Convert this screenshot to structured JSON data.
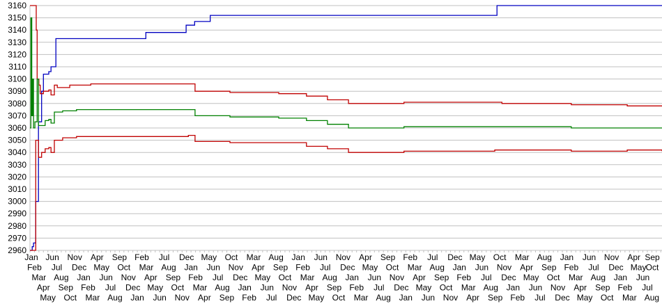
{
  "chart_data": {
    "type": "line",
    "title": "",
    "xlabel": "",
    "ylabel": "",
    "ylim": [
      2960,
      3160
    ],
    "yticks": [
      "2960",
      "2970",
      "2980",
      "2990",
      "3000",
      "3010",
      "3020",
      "3030",
      "3040",
      "3050",
      "3060",
      "3070",
      "3080",
      "3090",
      "3100",
      "3110",
      "3120",
      "3130",
      "3140",
      "3150",
      "3160"
    ],
    "grid": true,
    "legend": "none",
    "categories": [
      "Jan",
      "Feb",
      "Mar",
      "Apr",
      "May",
      "Jun",
      "Jul",
      "Aug",
      "Sep",
      "Oct",
      "Nov",
      "Dec",
      "Jan",
      "Feb",
      "Mar",
      "Apr",
      "May",
      "Jun",
      "Jul",
      "Aug",
      "Sep",
      "Oct",
      "Nov",
      "Dec",
      "Jan",
      "Feb",
      "Mar",
      "Apr",
      "May",
      "Jun",
      "Jul",
      "Aug",
      "Sep",
      "Oct",
      "Nov",
      "Dec",
      "Jan",
      "Feb",
      "Mar",
      "Apr",
      "May",
      "Jun",
      "Jul",
      "Aug",
      "Sep",
      "Oct",
      "Nov",
      "Dec",
      "Jan",
      "Feb",
      "Mar",
      "Apr",
      "May",
      "Jun",
      "Jul",
      "Aug",
      "Sep",
      "Oct",
      "Nov",
      "Dec",
      "Jan",
      "Feb",
      "Mar",
      "Apr",
      "May",
      "Jun",
      "Jul",
      "Aug",
      "Sep",
      "Oct",
      "Nov",
      "Dec",
      "Jan",
      "Feb",
      "Mar",
      "Apr",
      "May",
      "Jun",
      "Jul",
      "Aug",
      "Sep",
      "Oct",
      "Nov",
      "Dec",
      "Jan",
      "Feb",
      "Mar",
      "Apr",
      "May",
      "Jun",
      "Jul",
      "Aug",
      "Sep",
      "Oct",
      "Nov",
      "Dec",
      "Jan",
      "Feb",
      "Mar",
      "Apr",
      "May",
      "Jun",
      "Jul",
      "Aug",
      "Sep",
      "Oct",
      "Nov",
      "Dec",
      "Jan",
      "Feb",
      "Mar",
      "Apr",
      "May",
      "Jun",
      "Jul",
      "Aug",
      "Sep",
      "Oct",
      "Nov",
      "Dec",
      "Jan",
      "Feb",
      "Mar",
      "Apr",
      "May",
      "Jun",
      "Jul",
      "Aug",
      "Sep",
      "Oct",
      "Nov",
      "Dec",
      "Jan",
      "Feb",
      "Mar",
      "Apr",
      "May",
      "Jun",
      "Jul",
      "Aug",
      "Sep",
      "Oct"
    ],
    "series": [
      {
        "color": "#0000c0",
        "points": [
          [
            0,
            2960
          ],
          [
            0.5,
            2963
          ],
          [
            0.8,
            2966
          ],
          [
            1.1,
            2966
          ],
          [
            1.3,
            3000
          ],
          [
            1.9,
            3065
          ],
          [
            2.6,
            3090
          ],
          [
            3.0,
            3104
          ],
          [
            4.2,
            3106
          ],
          [
            4.7,
            3110
          ],
          [
            5.8,
            3133
          ],
          [
            25.9,
            3138
          ],
          [
            34.9,
            3144
          ],
          [
            36.8,
            3147
          ],
          [
            40.3,
            3152
          ],
          [
            104.4,
            3160
          ],
          [
            141.3,
            3160
          ]
        ]
      },
      {
        "color": "#c00000",
        "points": [
          [
            0,
            3160
          ],
          [
            1.1,
            3160
          ],
          [
            1.4,
            3140
          ],
          [
            1.6,
            3100
          ],
          [
            2.0,
            3095
          ],
          [
            2.3,
            3088
          ],
          [
            3.0,
            3090
          ],
          [
            4.2,
            3091
          ],
          [
            4.7,
            3087
          ],
          [
            5.45,
            3095
          ],
          [
            6.1,
            3093
          ],
          [
            8.9,
            3095
          ],
          [
            13.6,
            3096
          ],
          [
            35.4,
            3096
          ],
          [
            36.9,
            3090
          ],
          [
            44.7,
            3089
          ],
          [
            55.6,
            3088
          ],
          [
            61.8,
            3086
          ],
          [
            66.5,
            3083
          ],
          [
            71.2,
            3080
          ],
          [
            79,
            3080
          ],
          [
            83.6,
            3081
          ],
          [
            103.9,
            3081
          ],
          [
            105.5,
            3080
          ],
          [
            117.9,
            3080
          ],
          [
            121,
            3079
          ],
          [
            131.9,
            3079
          ],
          [
            133.5,
            3078
          ],
          [
            141.3,
            3078
          ]
        ]
      },
      {
        "color": "#008000",
        "points": [
          [
            0,
            3060
          ],
          [
            0.2,
            3150
          ],
          [
            0.4,
            3070
          ],
          [
            0.6,
            3100
          ],
          [
            0.8,
            3060
          ],
          [
            1.1,
            3065
          ],
          [
            1.6,
            3100
          ],
          [
            1.9,
            3062
          ],
          [
            2.6,
            3062
          ],
          [
            3.4,
            3066
          ],
          [
            4.2,
            3067
          ],
          [
            4.7,
            3064
          ],
          [
            5.45,
            3073
          ],
          [
            7.3,
            3074
          ],
          [
            10.4,
            3075
          ],
          [
            35.4,
            3075
          ],
          [
            36.9,
            3070
          ],
          [
            44.7,
            3069
          ],
          [
            55.6,
            3068
          ],
          [
            61.8,
            3066
          ],
          [
            66.5,
            3063
          ],
          [
            71.2,
            3060
          ],
          [
            79,
            3060
          ],
          [
            83.6,
            3061
          ],
          [
            103.9,
            3061
          ],
          [
            117.9,
            3061
          ],
          [
            121,
            3060
          ],
          [
            141.3,
            3060
          ]
        ]
      },
      {
        "color": "#c00000",
        "points": [
          [
            0,
            2960
          ],
          [
            1.2,
            2960
          ],
          [
            1.3,
            3050
          ],
          [
            1.9,
            3036
          ],
          [
            2.6,
            3040
          ],
          [
            3.4,
            3043
          ],
          [
            4.2,
            3044
          ],
          [
            4.7,
            3040
          ],
          [
            5.45,
            3050
          ],
          [
            7.3,
            3052
          ],
          [
            10.4,
            3053
          ],
          [
            35.4,
            3054
          ],
          [
            36.9,
            3049
          ],
          [
            44.7,
            3048
          ],
          [
            55.6,
            3048
          ],
          [
            61.8,
            3045
          ],
          [
            66.5,
            3043
          ],
          [
            71.2,
            3040
          ],
          [
            79,
            3040
          ],
          [
            83.6,
            3041
          ],
          [
            103.9,
            3042
          ],
          [
            121,
            3041
          ],
          [
            131.9,
            3041
          ],
          [
            133.5,
            3042
          ],
          [
            141.3,
            3041
          ]
        ]
      }
    ]
  }
}
